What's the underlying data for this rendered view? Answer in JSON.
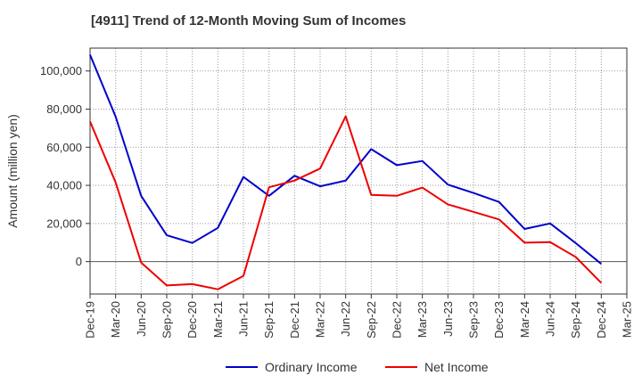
{
  "chart_data": {
    "type": "line",
    "title": "[4911]  Trend of 12-Month Moving Sum of Incomes",
    "xlabel": "",
    "ylabel": "Amount (million yen)",
    "categories": [
      "Dec-19",
      "Mar-20",
      "Jun-20",
      "Sep-20",
      "Dec-20",
      "Mar-21",
      "Jun-21",
      "Sep-21",
      "Dec-21",
      "Mar-22",
      "Jun-22",
      "Sep-22",
      "Dec-22",
      "Mar-23",
      "Jun-23",
      "Sep-23",
      "Dec-23",
      "Mar-24",
      "Jun-24",
      "Sep-24",
      "Dec-24",
      "Mar-25"
    ],
    "yticks": [
      0,
      20000,
      40000,
      60000,
      80000,
      100000
    ],
    "ytick_labels": [
      "0",
      "20,000",
      "40,000",
      "60,000",
      "80,000",
      "100,000"
    ],
    "ylim": [
      -17000,
      112000
    ],
    "grid": true,
    "legend_position": "bottom",
    "series": [
      {
        "name": "Ordinary Income",
        "color": "#0000cc",
        "values": [
          108500,
          76000,
          34500,
          13800,
          9800,
          17700,
          44400,
          34500,
          45000,
          39500,
          42500,
          59000,
          50600,
          52800,
          40400,
          36000,
          31300,
          17100,
          20000,
          9700,
          -1200,
          null
        ]
      },
      {
        "name": "Net Income",
        "color": "#ee0000",
        "values": [
          73500,
          41500,
          -500,
          -12500,
          -11800,
          -14500,
          -7500,
          39000,
          42500,
          48800,
          76200,
          35000,
          34500,
          38800,
          30000,
          26100,
          22100,
          9900,
          10200,
          2400,
          -11200,
          null
        ]
      }
    ]
  }
}
